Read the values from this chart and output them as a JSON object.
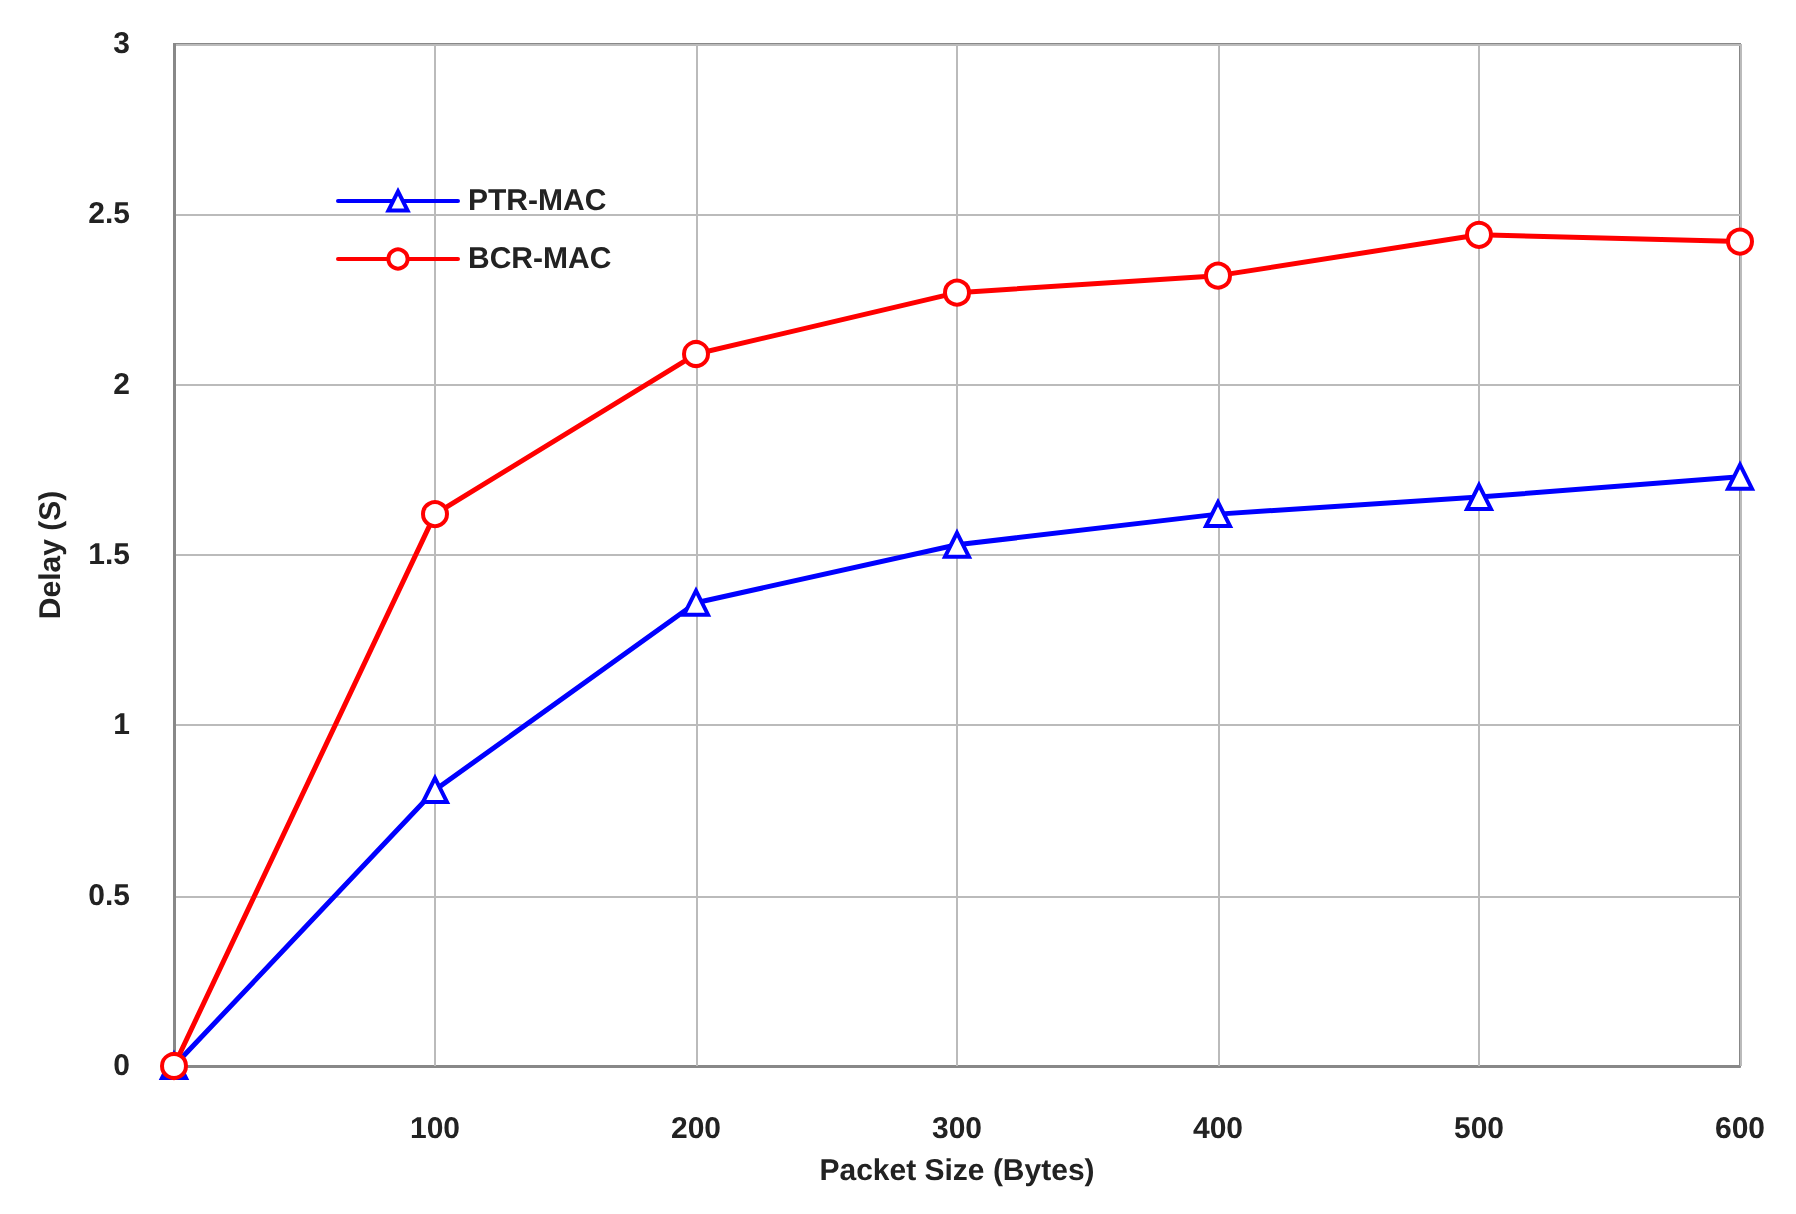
{
  "chart_data": {
    "type": "line",
    "xlabel": "Packet Size (Bytes)",
    "ylabel": "Delay (S)",
    "x": [
      0,
      100,
      200,
      300,
      400,
      500,
      600
    ],
    "series": [
      {
        "name": "PTR-MAC",
        "color": "#0000ff",
        "marker": "triangle",
        "values": [
          0,
          0.81,
          1.36,
          1.53,
          1.62,
          1.67,
          1.73
        ]
      },
      {
        "name": "BCR-MAC",
        "color": "#ff0000",
        "marker": "circle",
        "values": [
          0,
          1.62,
          2.09,
          2.27,
          2.32,
          2.44,
          2.42
        ]
      }
    ],
    "xlim": [
      0,
      600
    ],
    "xticks": [
      {
        "value": 0,
        "label": null
      },
      100,
      200,
      300,
      400,
      500,
      600
    ],
    "ylim": [
      0,
      3
    ],
    "yticks": [
      0,
      0.5,
      1,
      1.5,
      2,
      2.5,
      3
    ],
    "grid": true,
    "legend": "top left",
    "line_style": "solid"
  }
}
